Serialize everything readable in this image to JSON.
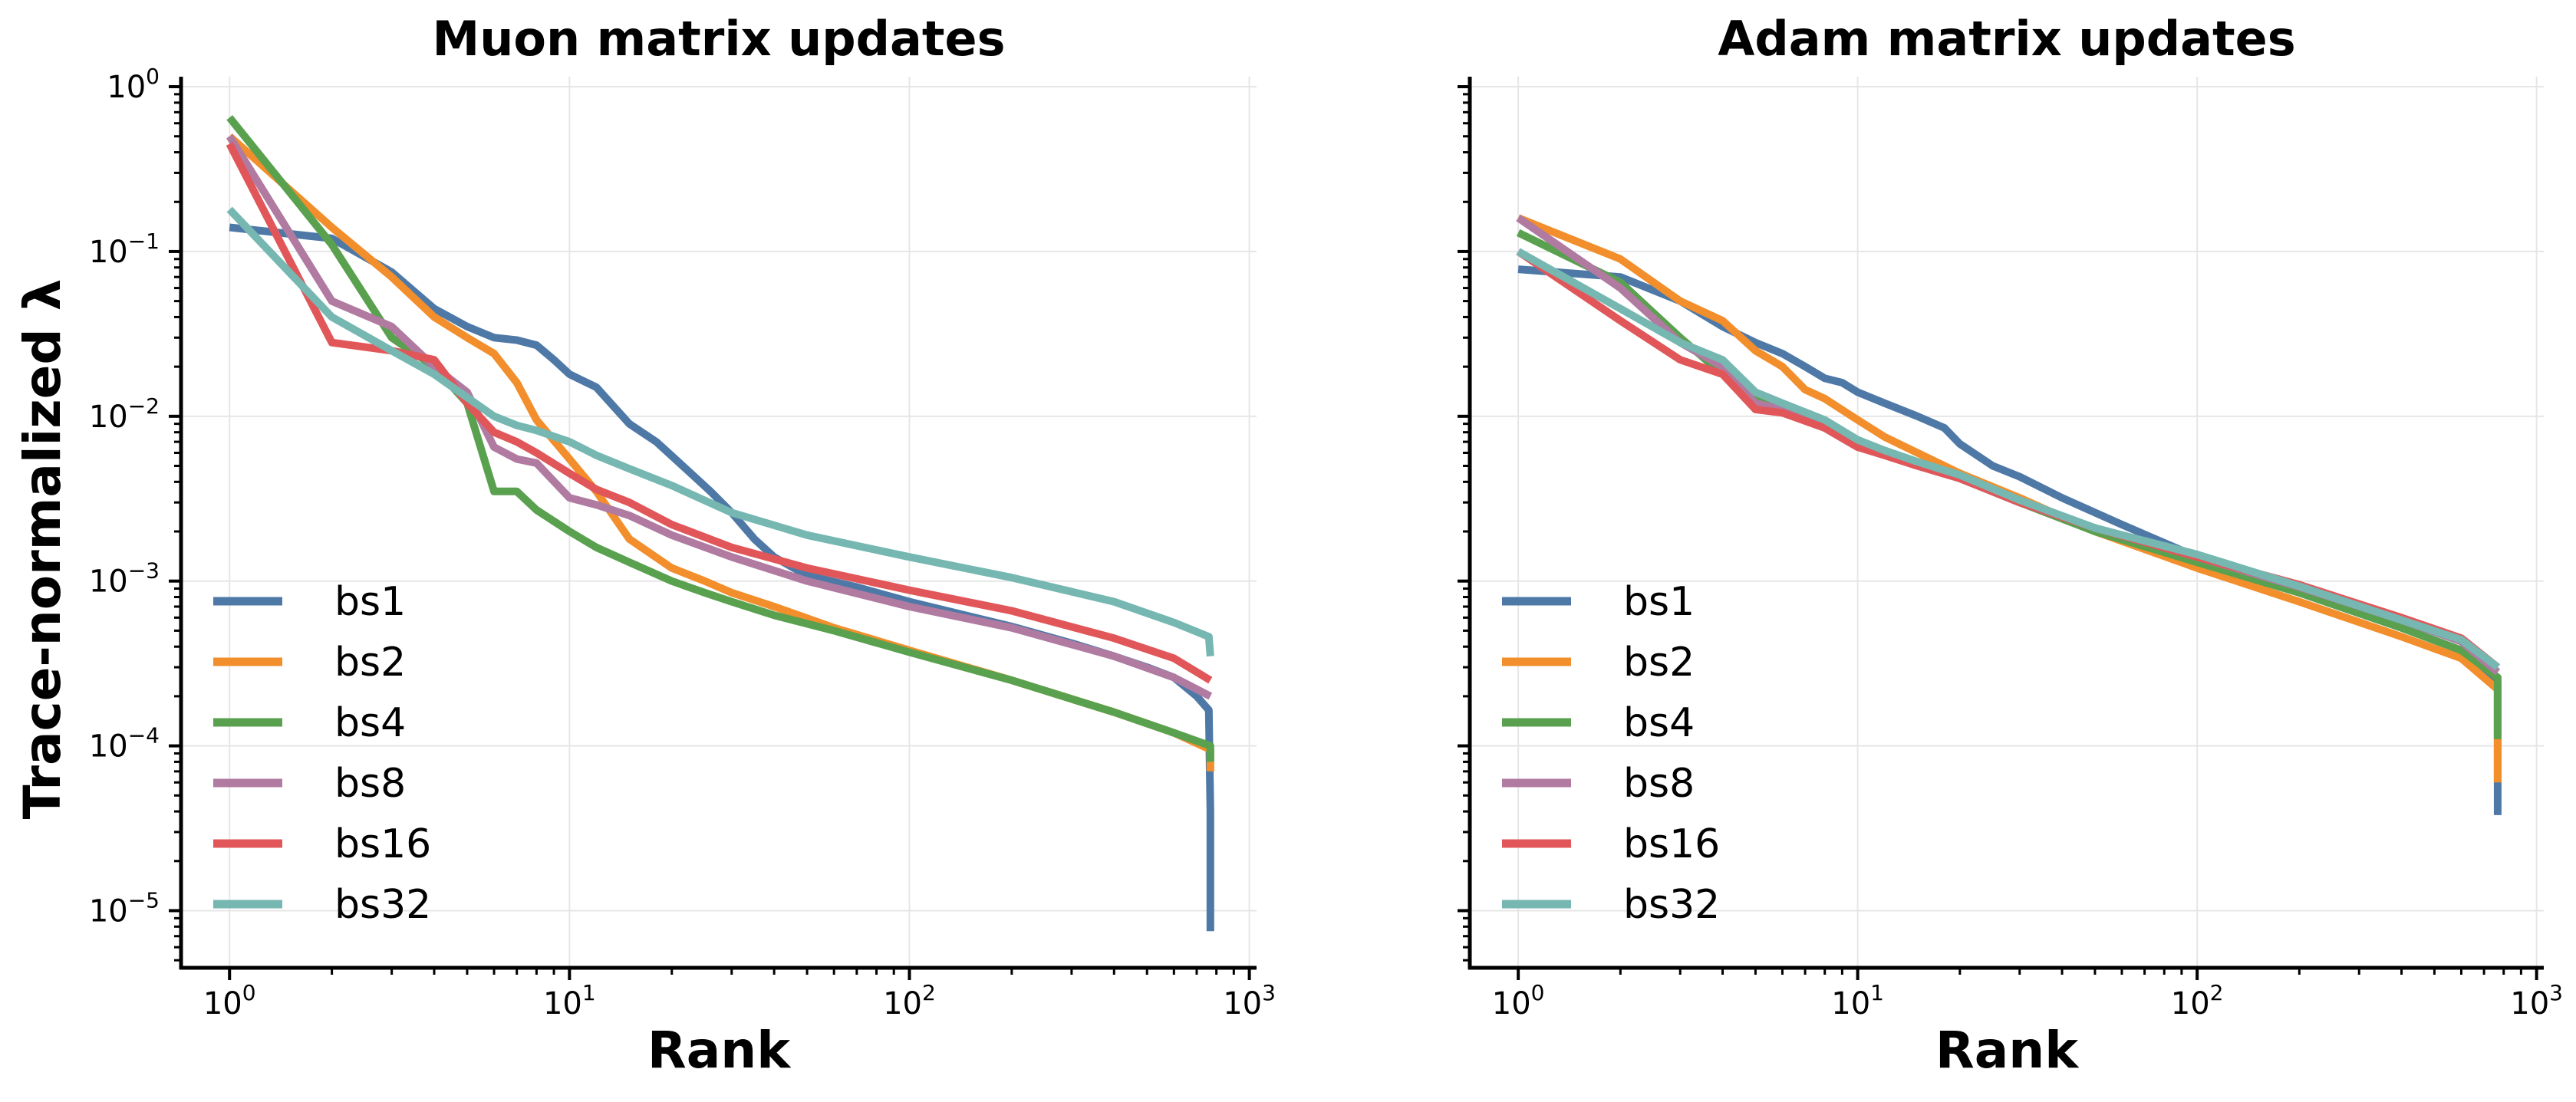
{
  "figure": {
    "ylabel": "Trace-normalized λ"
  },
  "chart_data": [
    {
      "type": "line",
      "title": "Muon matrix updates",
      "xlabel": "Rank",
      "ylabel": "Trace-normalized λ",
      "xscale": "log",
      "yscale": "log",
      "xlim": [
        0.72,
        1050
      ],
      "ylim": [
        4.5e-06,
        1.15
      ],
      "xticks": [
        {
          "value": 1,
          "base": "10",
          "exp": "0"
        },
        {
          "value": 10,
          "base": "10",
          "exp": "1"
        },
        {
          "value": 100,
          "base": "10",
          "exp": "2"
        },
        {
          "value": 1000,
          "base": "10",
          "exp": "3"
        }
      ],
      "yticks": [
        {
          "value": 1e-05,
          "base": "10",
          "exp": "−5"
        },
        {
          "value": 0.0001,
          "base": "10",
          "exp": "−4"
        },
        {
          "value": 0.001,
          "base": "10",
          "exp": "−3"
        },
        {
          "value": 0.01,
          "base": "10",
          "exp": "−2"
        },
        {
          "value": 0.1,
          "base": "10",
          "exp": "−1"
        },
        {
          "value": 1,
          "base": "10",
          "exp": "0"
        }
      ],
      "grid": true,
      "legend_position": "lower-left",
      "series": [
        {
          "name": "bs1",
          "color": "#4e79a7",
          "x": [
            1,
            2,
            3,
            4,
            5,
            6,
            7,
            8,
            9,
            10,
            12,
            15,
            18,
            22,
            26,
            30,
            35,
            40,
            50,
            70,
            100,
            200,
            300,
            400,
            500,
            600,
            700,
            760,
            768,
            768
          ],
          "y": [
            0.14,
            0.12,
            0.075,
            0.045,
            0.035,
            0.03,
            0.029,
            0.027,
            0.022,
            0.018,
            0.015,
            0.009,
            0.007,
            0.0048,
            0.0035,
            0.0026,
            0.0018,
            0.0014,
            0.00108,
            0.00092,
            0.00075,
            0.00053,
            0.00042,
            0.00035,
            0.0003,
            0.00026,
            0.0002,
            0.000165,
            4e-05,
            7.5e-06
          ]
        },
        {
          "name": "bs2",
          "color": "#f28e2b",
          "x": [
            1,
            2,
            3,
            4,
            5,
            6,
            7,
            8,
            10,
            12,
            15,
            20,
            25,
            30,
            40,
            60,
            100,
            200,
            400,
            600,
            768,
            768
          ],
          "y": [
            0.5,
            0.14,
            0.07,
            0.04,
            0.03,
            0.024,
            0.016,
            0.0095,
            0.0055,
            0.0035,
            0.0018,
            0.0012,
            0.001,
            0.00085,
            0.0007,
            0.00052,
            0.00038,
            0.00025,
            0.00016,
            0.00012,
            9.5e-05,
            7e-05
          ]
        },
        {
          "name": "bs4",
          "color": "#59a14f",
          "x": [
            1,
            2,
            3,
            4,
            5,
            6,
            7,
            8,
            10,
            12,
            15,
            20,
            25,
            30,
            40,
            60,
            100,
            200,
            400,
            600,
            768,
            768
          ],
          "y": [
            0.65,
            0.11,
            0.03,
            0.02,
            0.012,
            0.0035,
            0.0035,
            0.0027,
            0.002,
            0.0016,
            0.0013,
            0.001,
            0.00085,
            0.00075,
            0.00062,
            0.0005,
            0.00037,
            0.00025,
            0.00016,
            0.00012,
            0.0001,
            8e-05
          ]
        },
        {
          "name": "bs8",
          "color": "#b07aa1",
          "x": [
            1,
            2,
            3,
            4,
            5,
            6,
            7,
            8,
            10,
            12,
            15,
            20,
            30,
            50,
            100,
            200,
            400,
            600,
            768
          ],
          "y": [
            0.5,
            0.05,
            0.035,
            0.02,
            0.014,
            0.0065,
            0.0055,
            0.0052,
            0.0032,
            0.0029,
            0.0025,
            0.0019,
            0.0014,
            0.001,
            0.0007,
            0.00052,
            0.00035,
            0.00026,
            0.0002
          ]
        },
        {
          "name": "bs16",
          "color": "#e15759",
          "x": [
            1,
            2,
            3,
            4,
            5,
            6,
            7,
            8,
            10,
            12,
            15,
            20,
            30,
            50,
            100,
            200,
            400,
            600,
            768
          ],
          "y": [
            0.45,
            0.028,
            0.025,
            0.022,
            0.012,
            0.008,
            0.007,
            0.006,
            0.0045,
            0.0036,
            0.003,
            0.0022,
            0.0016,
            0.0012,
            0.00088,
            0.00066,
            0.00045,
            0.00034,
            0.00025
          ]
        },
        {
          "name": "bs32",
          "color": "#76b7b2",
          "x": [
            1,
            2,
            3,
            4,
            5,
            6,
            7,
            8,
            10,
            12,
            15,
            20,
            30,
            50,
            100,
            200,
            400,
            600,
            760,
            768
          ],
          "y": [
            0.18,
            0.04,
            0.025,
            0.018,
            0.013,
            0.01,
            0.0088,
            0.0082,
            0.007,
            0.0058,
            0.0048,
            0.0038,
            0.0026,
            0.0019,
            0.0014,
            0.00105,
            0.00075,
            0.00056,
            0.00046,
            0.00035
          ]
        }
      ]
    },
    {
      "type": "line",
      "title": "Adam matrix updates",
      "xlabel": "Rank",
      "xscale": "log",
      "yscale": "log",
      "xlim": [
        0.72,
        1050
      ],
      "ylim": [
        4.5e-06,
        1.15
      ],
      "xticks": [
        {
          "value": 1,
          "base": "10",
          "exp": "0"
        },
        {
          "value": 10,
          "base": "10",
          "exp": "1"
        },
        {
          "value": 100,
          "base": "10",
          "exp": "2"
        },
        {
          "value": 1000,
          "base": "10",
          "exp": "3"
        }
      ],
      "grid": true,
      "legend_position": "lower-left",
      "series": [
        {
          "name": "bs1",
          "color": "#4e79a7",
          "x": [
            1,
            2,
            3,
            4,
            5,
            6,
            7,
            8,
            9,
            10,
            12,
            15,
            18,
            20,
            25,
            30,
            40,
            60,
            100,
            200,
            400,
            600,
            768,
            768
          ],
          "y": [
            0.078,
            0.07,
            0.05,
            0.035,
            0.028,
            0.024,
            0.02,
            0.017,
            0.016,
            0.014,
            0.012,
            0.01,
            0.0085,
            0.0068,
            0.005,
            0.0043,
            0.0032,
            0.0022,
            0.0014,
            0.00085,
            0.00052,
            0.00038,
            0.00024,
            3.8e-05
          ]
        },
        {
          "name": "bs2",
          "color": "#f28e2b",
          "x": [
            1,
            2,
            3,
            4,
            5,
            6,
            7,
            8,
            10,
            12,
            15,
            20,
            30,
            50,
            100,
            200,
            400,
            600,
            768,
            768
          ],
          "y": [
            0.16,
            0.09,
            0.05,
            0.038,
            0.025,
            0.02,
            0.0145,
            0.0128,
            0.0095,
            0.0075,
            0.006,
            0.0045,
            0.0032,
            0.002,
            0.0012,
            0.00075,
            0.00046,
            0.00034,
            0.00022,
            6e-05
          ]
        },
        {
          "name": "bs4",
          "color": "#59a14f",
          "x": [
            1,
            2,
            3,
            4,
            5,
            6,
            8,
            10,
            12,
            15,
            20,
            30,
            50,
            100,
            200,
            400,
            600,
            768,
            768
          ],
          "y": [
            0.13,
            0.065,
            0.03,
            0.018,
            0.013,
            0.011,
            0.009,
            0.0068,
            0.006,
            0.0052,
            0.0042,
            0.003,
            0.002,
            0.0013,
            0.00085,
            0.00052,
            0.00038,
            0.00026,
            0.00011
          ]
        },
        {
          "name": "bs8",
          "color": "#b07aa1",
          "x": [
            1,
            2,
            3,
            4,
            5,
            6,
            8,
            10,
            12,
            15,
            20,
            30,
            50,
            100,
            200,
            400,
            600,
            768
          ],
          "y": [
            0.16,
            0.06,
            0.028,
            0.02,
            0.012,
            0.011,
            0.0085,
            0.0065,
            0.0058,
            0.005,
            0.0042,
            0.003,
            0.0021,
            0.0014,
            0.00092,
            0.00058,
            0.00043,
            0.00028
          ]
        },
        {
          "name": "bs16",
          "color": "#e15759",
          "x": [
            1,
            2,
            3,
            4,
            5,
            6,
            8,
            10,
            12,
            15,
            20,
            30,
            50,
            100,
            200,
            400,
            600,
            768
          ],
          "y": [
            0.1,
            0.038,
            0.022,
            0.018,
            0.011,
            0.0105,
            0.0085,
            0.0065,
            0.0058,
            0.005,
            0.0042,
            0.003,
            0.0021,
            0.0014,
            0.00095,
            0.0006,
            0.00045,
            0.0003
          ]
        },
        {
          "name": "bs32",
          "color": "#76b7b2",
          "x": [
            1,
            2,
            3,
            4,
            5,
            6,
            8,
            10,
            12,
            15,
            20,
            30,
            50,
            100,
            200,
            400,
            600,
            768
          ],
          "y": [
            0.1,
            0.045,
            0.028,
            0.022,
            0.014,
            0.012,
            0.0095,
            0.0072,
            0.0062,
            0.0053,
            0.0044,
            0.0031,
            0.0021,
            0.00145,
            0.00093,
            0.00058,
            0.00044,
            0.0003
          ]
        }
      ]
    }
  ]
}
